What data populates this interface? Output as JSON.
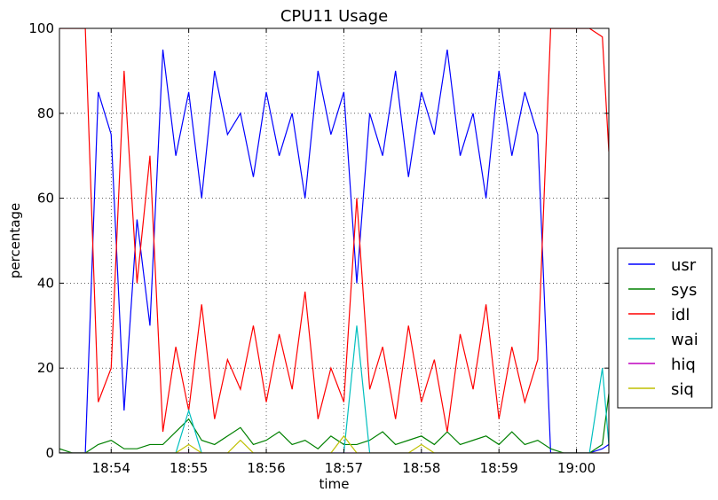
{
  "chart_data": {
    "type": "line",
    "title": "CPU11 Usage",
    "xlabel": "time",
    "ylabel": "percentage",
    "xlim": [
      "18:53:20",
      "19:00:25"
    ],
    "ylim": [
      0,
      100
    ],
    "xticks": [
      "18:54",
      "18:55",
      "18:56",
      "18:57",
      "18:58",
      "18:59",
      "19:00"
    ],
    "yticks": [
      "0",
      "20",
      "40",
      "60",
      "80",
      "100"
    ],
    "grid": true,
    "legend_position": "right",
    "x": [
      "18:53:20",
      "18:53:30",
      "18:53:40",
      "18:53:50",
      "18:54:00",
      "18:54:10",
      "18:54:20",
      "18:54:30",
      "18:54:40",
      "18:54:50",
      "18:55:00",
      "18:55:10",
      "18:55:20",
      "18:55:30",
      "18:55:40",
      "18:55:50",
      "18:56:00",
      "18:56:10",
      "18:56:20",
      "18:56:30",
      "18:56:40",
      "18:56:50",
      "18:57:00",
      "18:57:10",
      "18:57:20",
      "18:57:30",
      "18:57:40",
      "18:57:50",
      "18:58:00",
      "18:58:10",
      "18:58:20",
      "18:58:30",
      "18:58:40",
      "18:58:50",
      "18:59:00",
      "18:59:10",
      "18:59:20",
      "18:59:30",
      "18:59:40",
      "18:59:50",
      "19:00:00",
      "19:00:10",
      "19:00:20",
      "19:00:25"
    ],
    "series": [
      {
        "name": "usr",
        "color": "#0000ff",
        "values": [
          0,
          0,
          0,
          85,
          75,
          10,
          55,
          30,
          95,
          70,
          85,
          60,
          90,
          75,
          80,
          65,
          85,
          70,
          80,
          60,
          90,
          75,
          85,
          40,
          80,
          70,
          90,
          65,
          85,
          75,
          95,
          70,
          80,
          60,
          90,
          70,
          85,
          75,
          0,
          0,
          0,
          0,
          1,
          2
        ]
      },
      {
        "name": "sys",
        "color": "#008000",
        "values": [
          1,
          0,
          0,
          2,
          3,
          1,
          1,
          2,
          2,
          5,
          8,
          3,
          2,
          4,
          6,
          2,
          3,
          5,
          2,
          3,
          1,
          4,
          2,
          2,
          3,
          5,
          2,
          3,
          4,
          2,
          5,
          2,
          3,
          4,
          2,
          5,
          2,
          3,
          1,
          0,
          0,
          0,
          2,
          14
        ]
      },
      {
        "name": "idl",
        "color": "#ff0000",
        "values": [
          100,
          100,
          100,
          12,
          20,
          90,
          40,
          70,
          5,
          25,
          10,
          35,
          8,
          22,
          15,
          30,
          12,
          28,
          15,
          38,
          8,
          20,
          12,
          60,
          15,
          25,
          8,
          30,
          12,
          22,
          5,
          28,
          15,
          35,
          8,
          25,
          12,
          22,
          100,
          100,
          100,
          100,
          98,
          71
        ]
      },
      {
        "name": "wai",
        "color": "#00bfbf",
        "values": [
          0,
          0,
          0,
          0,
          0,
          0,
          0,
          0,
          0,
          0,
          10,
          0,
          0,
          0,
          0,
          0,
          0,
          0,
          0,
          0,
          0,
          0,
          0,
          30,
          0,
          0,
          0,
          0,
          0,
          0,
          0,
          0,
          0,
          0,
          0,
          0,
          0,
          0,
          0,
          0,
          0,
          0,
          20,
          2
        ]
      },
      {
        "name": "hiq",
        "color": "#bf00bf",
        "values": [
          0,
          0,
          0,
          0,
          0,
          0,
          0,
          0,
          0,
          0,
          0,
          0,
          0,
          0,
          0,
          0,
          0,
          0,
          0,
          0,
          0,
          0,
          0,
          0,
          0,
          0,
          0,
          0,
          0,
          0,
          0,
          0,
          0,
          0,
          0,
          0,
          0,
          0,
          0,
          0,
          0,
          0,
          0,
          0
        ]
      },
      {
        "name": "siq",
        "color": "#bfbf00",
        "values": [
          0,
          0,
          0,
          0,
          0,
          0,
          0,
          0,
          0,
          0,
          2,
          0,
          0,
          0,
          3,
          0,
          0,
          0,
          0,
          0,
          0,
          0,
          4,
          0,
          0,
          0,
          0,
          0,
          2,
          0,
          0,
          0,
          0,
          0,
          0,
          0,
          0,
          0,
          0,
          0,
          0,
          0,
          0,
          0
        ]
      }
    ]
  }
}
